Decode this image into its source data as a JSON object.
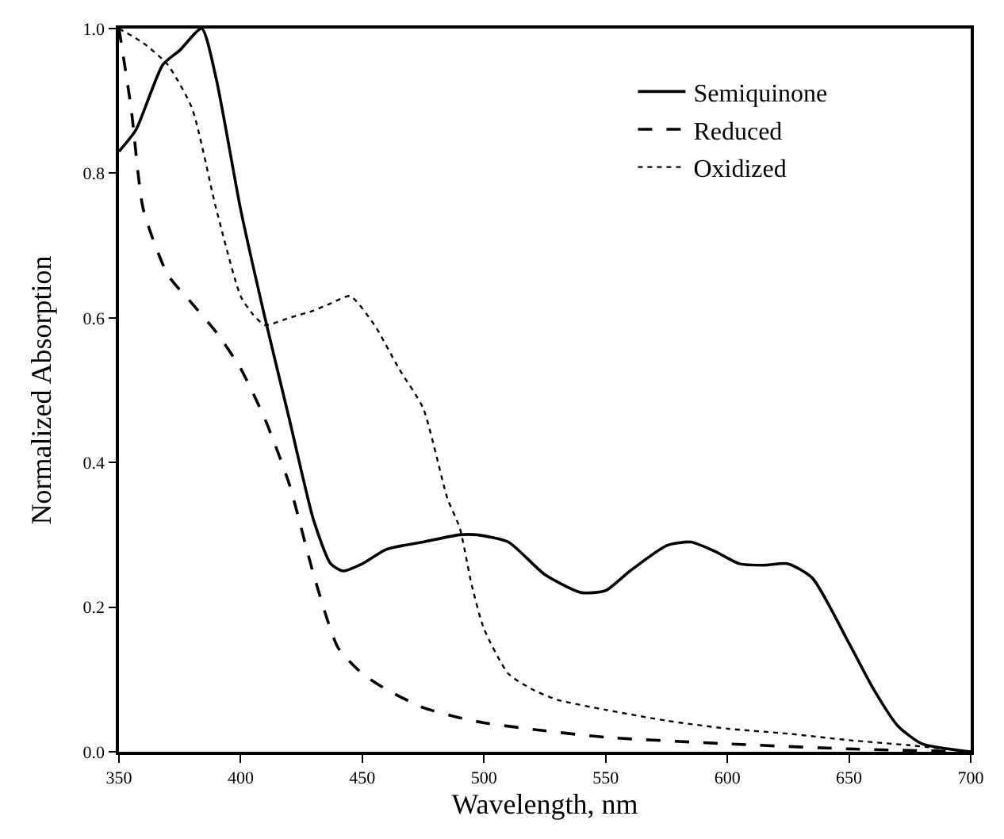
{
  "chart_data": {
    "type": "line",
    "xlabel": "Wavelength, nm",
    "ylabel": "Normalized Absorption",
    "xlim": [
      350,
      700
    ],
    "xticks": [
      350,
      400,
      450,
      500,
      550,
      600,
      650,
      700
    ],
    "ylim": [
      0,
      1
    ],
    "yticks": [
      {
        "value": 0,
        "label": "0.0"
      },
      {
        "value": 0.2,
        "label": "0.2"
      },
      {
        "value": 0.4,
        "label": "0.4"
      },
      {
        "value": 0.6,
        "label": "0.6"
      },
      {
        "value": 0.8,
        "label": "0.8"
      },
      {
        "value": 1,
        "label": "1.0"
      }
    ],
    "legend": "top right",
    "marker": "none",
    "series": [
      {
        "name": "Semiquinone",
        "color": "#000000",
        "line_style": "solid",
        "x": [
          350,
          357,
          368,
          375,
          384,
          390,
          400,
          410,
          420,
          430,
          437,
          442,
          450,
          460,
          475,
          490,
          497,
          510,
          525,
          540,
          550,
          560,
          575,
          585,
          595,
          605,
          615,
          625,
          635,
          650,
          660,
          670,
          680,
          700
        ],
        "values": [
          0.83,
          0.86,
          0.95,
          0.97,
          1.0,
          0.93,
          0.75,
          0.6,
          0.46,
          0.32,
          0.26,
          0.25,
          0.26,
          0.28,
          0.29,
          0.3,
          0.3,
          0.29,
          0.245,
          0.22,
          0.223,
          0.25,
          0.285,
          0.29,
          0.277,
          0.26,
          0.258,
          0.26,
          0.24,
          0.15,
          0.087,
          0.036,
          0.011,
          0.0
        ]
      },
      {
        "name": "Reduced",
        "color": "#000000",
        "line_style": "dashed",
        "x": [
          350,
          355,
          360,
          370,
          380,
          390,
          400,
          410,
          420,
          430,
          440,
          450,
          460,
          475,
          490,
          500,
          525,
          550,
          600,
          650,
          700
        ],
        "values": [
          1.0,
          0.89,
          0.75,
          0.66,
          0.62,
          0.58,
          0.53,
          0.46,
          0.37,
          0.245,
          0.144,
          0.108,
          0.086,
          0.061,
          0.047,
          0.04,
          0.029,
          0.02,
          0.011,
          0.004,
          0.0
        ]
      },
      {
        "name": "Oxidized",
        "color": "#000000",
        "line_style": "dotted",
        "x": [
          350,
          360,
          370,
          380,
          390,
          400,
          405,
          410,
          420,
          430,
          437,
          445,
          455,
          465,
          475,
          485,
          490,
          495,
          500,
          510,
          520,
          530,
          550,
          575,
          600,
          625,
          650,
          675,
          700
        ],
        "values": [
          1.0,
          0.98,
          0.95,
          0.89,
          0.75,
          0.63,
          0.605,
          0.59,
          0.6,
          0.61,
          0.62,
          0.63,
          0.59,
          0.53,
          0.475,
          0.35,
          0.31,
          0.23,
          0.17,
          0.108,
          0.086,
          0.072,
          0.058,
          0.043,
          0.032,
          0.025,
          0.016,
          0.009,
          0.0
        ]
      }
    ]
  }
}
